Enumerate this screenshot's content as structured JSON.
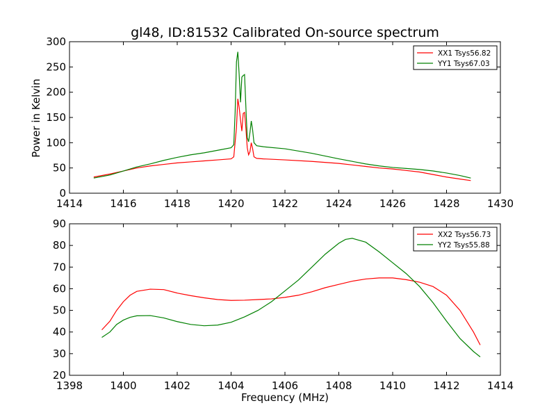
{
  "chart_data": [
    {
      "type": "line",
      "title": "gl48, ID:81532 Calibrated On-source spectrum",
      "xlabel": "",
      "ylabel": "Power in Kelvin",
      "xlim": [
        1414,
        1430
      ],
      "ylim": [
        0,
        300
      ],
      "xticks": [
        "1414",
        "1416",
        "1418",
        "1420",
        "1422",
        "1424",
        "1426",
        "1428",
        "1430"
      ],
      "yticks": [
        "0",
        "50",
        "100",
        "150",
        "200",
        "250",
        "300"
      ],
      "legend_position": "top-right",
      "grid": false,
      "series": [
        {
          "name": "XX1 Tsys56.82",
          "color": "#ff0000",
          "points": [
            [
              1414.9,
              32
            ],
            [
              1415.5,
              38
            ],
            [
              1416,
              44
            ],
            [
              1416.5,
              50
            ],
            [
              1417,
              54
            ],
            [
              1417.5,
              57
            ],
            [
              1418,
              60
            ],
            [
              1418.5,
              62
            ],
            [
              1419,
              64
            ],
            [
              1419.5,
              66
            ],
            [
              1420,
              68
            ],
            [
              1420.1,
              72
            ],
            [
              1420.2,
              130
            ],
            [
              1420.25,
              187
            ],
            [
              1420.3,
              170
            ],
            [
              1420.35,
              145
            ],
            [
              1420.4,
              123
            ],
            [
              1420.45,
              158
            ],
            [
              1420.5,
              160
            ],
            [
              1420.55,
              128
            ],
            [
              1420.6,
              90
            ],
            [
              1420.65,
              76
            ],
            [
              1420.7,
              82
            ],
            [
              1420.75,
              100
            ],
            [
              1420.8,
              88
            ],
            [
              1420.85,
              72
            ],
            [
              1420.95,
              69
            ],
            [
              1421.2,
              68
            ],
            [
              1422,
              66
            ],
            [
              1423,
              63
            ],
            [
              1424,
              59
            ],
            [
              1424.5,
              56
            ],
            [
              1425,
              53
            ],
            [
              1425.5,
              50
            ],
            [
              1426,
              48
            ],
            [
              1426.5,
              45
            ],
            [
              1427,
              42
            ],
            [
              1427.5,
              37
            ],
            [
              1428,
              32
            ],
            [
              1428.5,
              28
            ],
            [
              1428.9,
              25
            ]
          ]
        },
        {
          "name": "YY1 Tsys67.03",
          "color": "#008000",
          "points": [
            [
              1414.9,
              30
            ],
            [
              1415.5,
              36
            ],
            [
              1416,
              44
            ],
            [
              1416.5,
              52
            ],
            [
              1417,
              58
            ],
            [
              1417.5,
              65
            ],
            [
              1418,
              71
            ],
            [
              1418.5,
              76
            ],
            [
              1419,
              80
            ],
            [
              1419.5,
              85
            ],
            [
              1420,
              90
            ],
            [
              1420.1,
              96
            ],
            [
              1420.15,
              160
            ],
            [
              1420.2,
              260
            ],
            [
              1420.25,
              280
            ],
            [
              1420.3,
              235
            ],
            [
              1420.35,
              180
            ],
            [
              1420.4,
              230
            ],
            [
              1420.45,
              233
            ],
            [
              1420.5,
              235
            ],
            [
              1420.55,
              170
            ],
            [
              1420.6,
              110
            ],
            [
              1420.65,
              102
            ],
            [
              1420.7,
              120
            ],
            [
              1420.75,
              143
            ],
            [
              1420.8,
              125
            ],
            [
              1420.85,
              100
            ],
            [
              1420.95,
              94
            ],
            [
              1421.2,
              92
            ],
            [
              1422,
              88
            ],
            [
              1423,
              79
            ],
            [
              1424,
              68
            ],
            [
              1424.5,
              63
            ],
            [
              1425,
              58
            ],
            [
              1425.5,
              54
            ],
            [
              1426,
              51
            ],
            [
              1426.5,
              49
            ],
            [
              1427,
              47
            ],
            [
              1427.5,
              44
            ],
            [
              1428,
              40
            ],
            [
              1428.5,
              35
            ],
            [
              1428.9,
              30
            ]
          ]
        }
      ]
    },
    {
      "type": "line",
      "title": "",
      "xlabel": "Frequency (MHz)",
      "ylabel": "",
      "xlim": [
        1398,
        1414
      ],
      "ylim": [
        20,
        90
      ],
      "xticks": [
        "1398",
        "1400",
        "1402",
        "1404",
        "1406",
        "1408",
        "1410",
        "1412",
        "1414"
      ],
      "yticks": [
        "20",
        "30",
        "40",
        "50",
        "60",
        "70",
        "80",
        "90"
      ],
      "legend_position": "top-right",
      "grid": false,
      "series": [
        {
          "name": "XX2 Tsys56.73",
          "color": "#ff0000",
          "points": [
            [
              1399.2,
              41
            ],
            [
              1399.5,
              45
            ],
            [
              1399.75,
              50
            ],
            [
              1400,
              54
            ],
            [
              1400.25,
              57
            ],
            [
              1400.5,
              58.8
            ],
            [
              1401,
              59.8
            ],
            [
              1401.5,
              59.6
            ],
            [
              1402,
              58
            ],
            [
              1402.5,
              56.8
            ],
            [
              1403,
              55.8
            ],
            [
              1403.5,
              55
            ],
            [
              1404,
              54.6
            ],
            [
              1404.5,
              54.7
            ],
            [
              1405,
              55
            ],
            [
              1405.5,
              55.3
            ],
            [
              1406,
              56
            ],
            [
              1406.5,
              57
            ],
            [
              1407,
              58.6
            ],
            [
              1407.5,
              60.5
            ],
            [
              1408,
              62
            ],
            [
              1408.5,
              63.5
            ],
            [
              1409,
              64.5
            ],
            [
              1409.5,
              65
            ],
            [
              1410,
              65
            ],
            [
              1410.5,
              64.2
            ],
            [
              1411,
              63
            ],
            [
              1411.5,
              61
            ],
            [
              1412,
              57
            ],
            [
              1412.5,
              50
            ],
            [
              1413,
              40
            ],
            [
              1413.25,
              34
            ]
          ]
        },
        {
          "name": "YY2 Tsys55.88",
          "color": "#008000",
          "points": [
            [
              1399.2,
              37.5
            ],
            [
              1399.5,
              40
            ],
            [
              1399.75,
              43.5
            ],
            [
              1400,
              45.5
            ],
            [
              1400.25,
              46.8
            ],
            [
              1400.5,
              47.5
            ],
            [
              1401,
              47.6
            ],
            [
              1401.5,
              46.5
            ],
            [
              1402,
              44.8
            ],
            [
              1402.5,
              43.5
            ],
            [
              1403,
              42.9
            ],
            [
              1403.5,
              43.2
            ],
            [
              1404,
              44.5
            ],
            [
              1404.5,
              47
            ],
            [
              1405,
              50
            ],
            [
              1405.5,
              54
            ],
            [
              1406,
              59
            ],
            [
              1406.5,
              64
            ],
            [
              1407,
              70
            ],
            [
              1407.5,
              76
            ],
            [
              1408,
              81
            ],
            [
              1408.25,
              82.8
            ],
            [
              1408.5,
              83.3
            ],
            [
              1409,
              81.5
            ],
            [
              1409.5,
              77
            ],
            [
              1410,
              72
            ],
            [
              1410.5,
              67
            ],
            [
              1411,
              61
            ],
            [
              1411.5,
              53.5
            ],
            [
              1412,
              45
            ],
            [
              1412.5,
              37
            ],
            [
              1413,
              31
            ],
            [
              1413.25,
              28.5
            ]
          ]
        }
      ]
    }
  ]
}
